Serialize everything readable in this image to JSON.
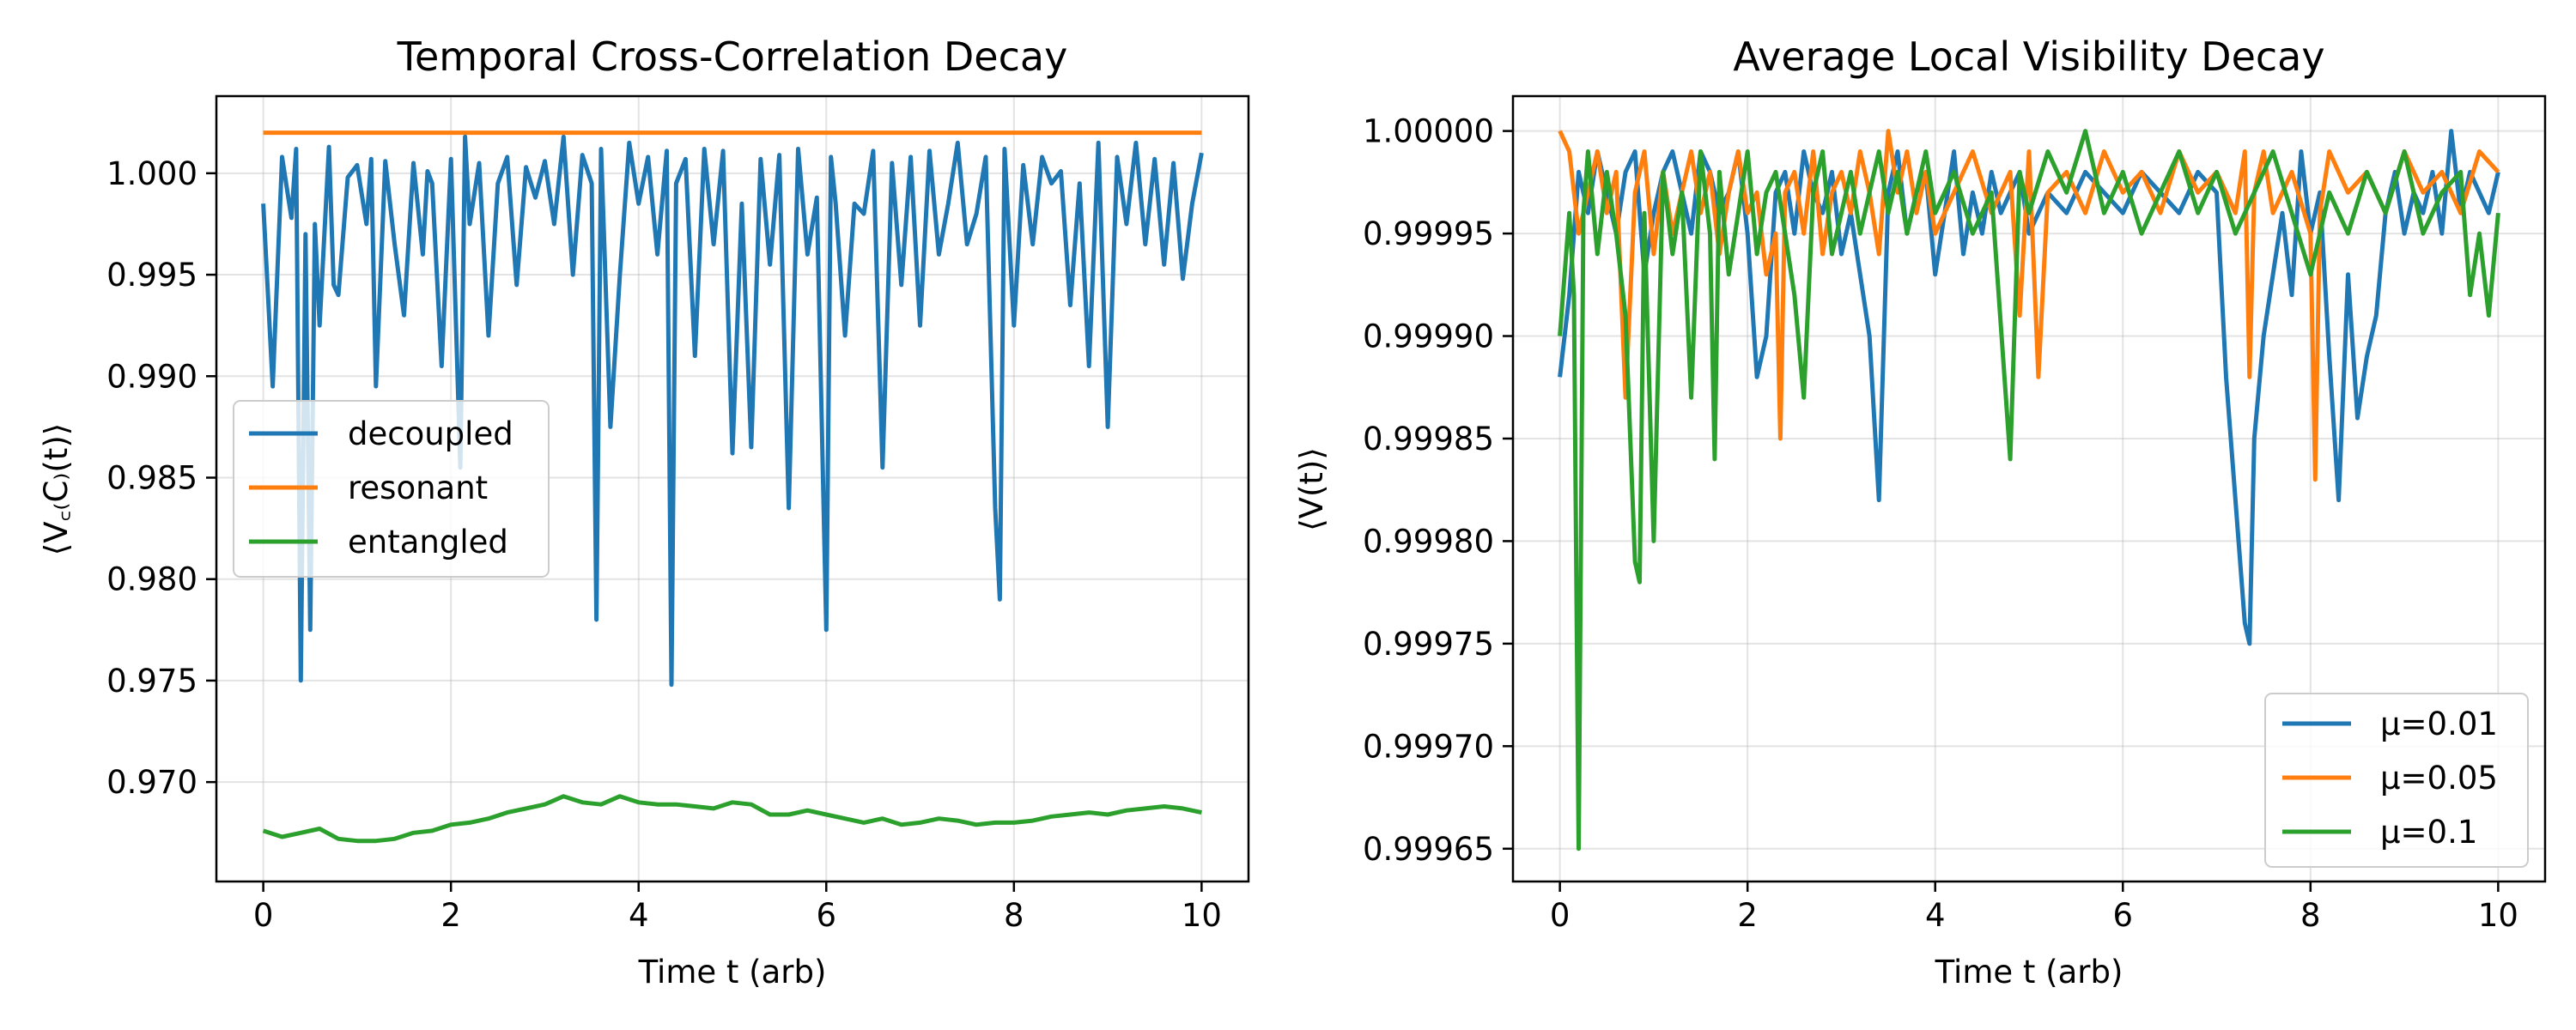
{
  "chart_data": [
    {
      "type": "line",
      "title": "Temporal Cross-Correlation Decay",
      "xlabel": "Time t (arb)",
      "ylabel": "⟨V꜀₍C₎(t)⟩",
      "xlim": [
        -0.5,
        10.5
      ],
      "ylim": [
        0.9651,
        1.0038
      ],
      "xticks": [
        0,
        2,
        4,
        6,
        8,
        10
      ],
      "xtick_labels": [
        "0",
        "2",
        "4",
        "6",
        "8",
        "10"
      ],
      "yticks": [
        0.97,
        0.975,
        0.98,
        0.985,
        0.99,
        0.995,
        1.0
      ],
      "ytick_labels": [
        "0.970",
        "0.975",
        "0.980",
        "0.985",
        "0.990",
        "0.995",
        "1.000"
      ],
      "grid": true,
      "legend": "center-left",
      "series": [
        {
          "name": "decoupled",
          "color": "#1f77b4",
          "x": [
            0.0,
            0.1,
            0.2,
            0.3,
            0.35,
            0.4,
            0.45,
            0.5,
            0.55,
            0.6,
            0.7,
            0.75,
            0.8,
            0.9,
            1.0,
            1.1,
            1.15,
            1.2,
            1.3,
            1.4,
            1.5,
            1.6,
            1.7,
            1.75,
            1.8,
            1.9,
            2.0,
            2.1,
            2.15,
            2.2,
            2.3,
            2.4,
            2.5,
            2.6,
            2.7,
            2.8,
            2.9,
            3.0,
            3.1,
            3.2,
            3.3,
            3.4,
            3.5,
            3.55,
            3.6,
            3.7,
            3.8,
            3.9,
            4.0,
            4.1,
            4.2,
            4.3,
            4.35,
            4.4,
            4.5,
            4.6,
            4.7,
            4.8,
            4.9,
            5.0,
            5.1,
            5.2,
            5.3,
            5.4,
            5.5,
            5.6,
            5.7,
            5.8,
            5.9,
            6.0,
            6.05,
            6.1,
            6.2,
            6.3,
            6.4,
            6.5,
            6.6,
            6.7,
            6.8,
            6.9,
            7.0,
            7.1,
            7.2,
            7.3,
            7.4,
            7.5,
            7.6,
            7.7,
            7.8,
            7.85,
            7.9,
            8.0,
            8.1,
            8.2,
            8.3,
            8.4,
            8.5,
            8.6,
            8.7,
            8.8,
            8.9,
            9.0,
            9.1,
            9.2,
            9.3,
            9.4,
            9.5,
            9.6,
            9.7,
            9.8,
            9.9,
            10.0
          ],
          "y": [
            0.9985,
            0.9895,
            1.0008,
            0.9978,
            1.0012,
            0.975,
            0.997,
            0.9775,
            0.9975,
            0.9925,
            1.0013,
            0.9945,
            0.994,
            0.9998,
            1.0004,
            0.9975,
            1.0007,
            0.9895,
            1.0006,
            0.9965,
            0.993,
            1.0005,
            0.996,
            1.0001,
            0.9995,
            0.9905,
            1.0007,
            0.9855,
            1.0018,
            0.9975,
            1.0005,
            0.992,
            0.9995,
            1.0008,
            0.9945,
            1.0003,
            0.9988,
            1.0006,
            0.9975,
            1.0018,
            0.995,
            1.0009,
            0.9995,
            0.978,
            1.0012,
            0.9875,
            0.995,
            1.0015,
            0.9985,
            1.0008,
            0.996,
            1.0011,
            0.9748,
            0.9995,
            1.0007,
            0.991,
            1.0012,
            0.9965,
            1.0011,
            0.9862,
            0.9985,
            0.9865,
            1.0007,
            0.9955,
            1.0009,
            0.9835,
            1.0012,
            0.996,
            0.9988,
            0.9775,
            1.0008,
            0.9985,
            0.992,
            0.9985,
            0.998,
            1.0011,
            0.9855,
            1.0005,
            0.9945,
            1.0008,
            0.9925,
            1.0011,
            0.996,
            0.9985,
            1.0015,
            0.9965,
            0.998,
            1.0008,
            0.9835,
            0.979,
            1.0012,
            0.9925,
            1.0004,
            0.9965,
            1.0008,
            0.9995,
            1.0001,
            0.9935,
            0.9995,
            0.9905,
            1.0015,
            0.9875,
            1.0008,
            0.9975,
            1.0015,
            0.9965,
            1.0007,
            0.9955,
            1.0005,
            0.9948,
            0.9985,
            1.001
          ]
        },
        {
          "name": "resonant",
          "color": "#ff7f0e",
          "x": [
            0,
            10
          ],
          "y": [
            1.002,
            1.002
          ]
        },
        {
          "name": "entangled",
          "color": "#2ca02c",
          "x": [
            0.0,
            0.2,
            0.4,
            0.6,
            0.8,
            1.0,
            1.2,
            1.4,
            1.6,
            1.8,
            2.0,
            2.2,
            2.4,
            2.6,
            2.8,
            3.0,
            3.2,
            3.4,
            3.6,
            3.8,
            4.0,
            4.2,
            4.4,
            4.6,
            4.8,
            5.0,
            5.2,
            5.4,
            5.6,
            5.8,
            6.0,
            6.2,
            6.4,
            6.6,
            6.8,
            7.0,
            7.2,
            7.4,
            7.6,
            7.8,
            8.0,
            8.2,
            8.4,
            8.6,
            8.8,
            9.0,
            9.2,
            9.4,
            9.6,
            9.8,
            10.0
          ],
          "y": [
            0.9676,
            0.9673,
            0.9675,
            0.9677,
            0.9672,
            0.9671,
            0.9671,
            0.9672,
            0.9675,
            0.9676,
            0.9679,
            0.968,
            0.9682,
            0.9685,
            0.9687,
            0.9689,
            0.9693,
            0.969,
            0.9689,
            0.9693,
            0.969,
            0.9689,
            0.9689,
            0.9688,
            0.9687,
            0.969,
            0.9689,
            0.9684,
            0.9684,
            0.9686,
            0.9684,
            0.9682,
            0.968,
            0.9682,
            0.9679,
            0.968,
            0.9682,
            0.9681,
            0.9679,
            0.968,
            0.968,
            0.9681,
            0.9683,
            0.9684,
            0.9685,
            0.9684,
            0.9686,
            0.9687,
            0.9688,
            0.9687,
            0.9685
          ]
        }
      ]
    },
    {
      "type": "line",
      "title": "Average Local Visibility Decay",
      "xlabel": "Time t (arb)",
      "ylabel": "⟨V(t)⟩",
      "xlim": [
        -0.5,
        10.5
      ],
      "ylim": [
        0.999634,
        1.000017
      ],
      "xticks": [
        0,
        2,
        4,
        6,
        8,
        10
      ],
      "xtick_labels": [
        "0",
        "2",
        "4",
        "6",
        "8",
        "10"
      ],
      "yticks": [
        0.99965,
        0.9997,
        0.99975,
        0.9998,
        0.99985,
        0.9999,
        0.99995,
        1.0
      ],
      "ytick_labels": [
        "0.99965",
        "0.99970",
        "0.99975",
        "0.99980",
        "0.99985",
        "0.99990",
        "0.99995",
        "1.00000"
      ],
      "grid": true,
      "legend": "lower-right",
      "series": [
        {
          "name": "μ=0.01",
          "color": "#1f77b4",
          "x": [
            0.0,
            0.1,
            0.2,
            0.3,
            0.4,
            0.5,
            0.6,
            0.7,
            0.8,
            0.9,
            1.0,
            1.1,
            1.2,
            1.3,
            1.4,
            1.5,
            1.6,
            1.7,
            1.8,
            1.9,
            2.0,
            2.1,
            2.2,
            2.3,
            2.4,
            2.5,
            2.6,
            2.7,
            2.8,
            2.9,
            3.0,
            3.1,
            3.2,
            3.3,
            3.4,
            3.5,
            3.6,
            3.7,
            3.8,
            3.9,
            4.0,
            4.1,
            4.2,
            4.3,
            4.4,
            4.5,
            4.6,
            4.7,
            4.8,
            4.9,
            5.0,
            5.2,
            5.4,
            5.6,
            5.8,
            6.0,
            6.2,
            6.4,
            6.6,
            6.8,
            7.0,
            7.1,
            7.2,
            7.3,
            7.35,
            7.4,
            7.5,
            7.6,
            7.7,
            7.8,
            7.9,
            8.0,
            8.1,
            8.2,
            8.3,
            8.4,
            8.5,
            8.6,
            8.7,
            8.8,
            8.9,
            9.0,
            9.1,
            9.2,
            9.3,
            9.4,
            9.5,
            9.6,
            9.7,
            9.8,
            9.9,
            10.0
          ],
          "y": [
            0.99988,
            0.99992,
            0.99998,
            0.99996,
            0.99999,
            0.99997,
            0.99995,
            0.99998,
            0.99999,
            0.99993,
            0.99996,
            0.99998,
            0.99999,
            0.99997,
            0.99995,
            0.99999,
            0.99998,
            0.99996,
            0.99997,
            0.99999,
            0.99995,
            0.99988,
            0.9999,
            0.99997,
            0.99998,
            0.99995,
            0.99999,
            0.99997,
            0.99996,
            0.99998,
            0.99994,
            0.99996,
            0.99993,
            0.9999,
            0.99982,
            0.99997,
            0.99999,
            0.99995,
            0.99997,
            0.99998,
            0.99993,
            0.99996,
            0.99999,
            0.99994,
            0.99997,
            0.99995,
            0.99998,
            0.99996,
            0.99997,
            0.99998,
            0.99995,
            0.99997,
            0.99996,
            0.99998,
            0.99997,
            0.99996,
            0.99998,
            0.99997,
            0.99996,
            0.99998,
            0.99997,
            0.99988,
            0.99982,
            0.99976,
            0.99975,
            0.99985,
            0.9999,
            0.99993,
            0.99996,
            0.99992,
            0.99999,
            0.99995,
            0.99997,
            0.99989,
            0.99982,
            0.99993,
            0.99986,
            0.99989,
            0.99991,
            0.99996,
            0.99998,
            0.99995,
            0.99997,
            0.99996,
            0.99998,
            0.99995,
            1.0,
            0.99996,
            0.99998,
            0.99997,
            0.99996,
            0.99998
          ]
        },
        {
          "name": "μ=0.05",
          "color": "#ff7f0e",
          "x": [
            0.0,
            0.1,
            0.2,
            0.3,
            0.4,
            0.5,
            0.6,
            0.7,
            0.8,
            0.9,
            1.0,
            1.1,
            1.2,
            1.3,
            1.4,
            1.5,
            1.6,
            1.7,
            1.8,
            1.9,
            2.0,
            2.1,
            2.2,
            2.3,
            2.35,
            2.4,
            2.5,
            2.6,
            2.7,
            2.8,
            2.9,
            3.0,
            3.1,
            3.2,
            3.3,
            3.4,
            3.5,
            3.6,
            3.7,
            3.8,
            3.9,
            4.0,
            4.2,
            4.4,
            4.6,
            4.8,
            4.9,
            5.0,
            5.1,
            5.2,
            5.4,
            5.6,
            5.8,
            6.0,
            6.2,
            6.4,
            6.6,
            6.8,
            7.0,
            7.2,
            7.3,
            7.35,
            7.4,
            7.5,
            7.6,
            7.8,
            8.0,
            8.05,
            8.1,
            8.2,
            8.4,
            8.6,
            8.8,
            9.0,
            9.2,
            9.4,
            9.6,
            9.8,
            10.0
          ],
          "y": [
            1.0,
            0.99999,
            0.99995,
            0.99997,
            0.99999,
            0.99996,
            0.99998,
            0.99987,
            0.99997,
            0.99999,
            0.99994,
            0.99998,
            0.99995,
            0.99997,
            0.99999,
            0.99996,
            0.99998,
            0.99994,
            0.99997,
            0.99999,
            0.99996,
            0.99997,
            0.99993,
            0.99995,
            0.99985,
            0.99997,
            0.99998,
            0.99995,
            0.99999,
            0.99994,
            0.99997,
            0.99998,
            0.99996,
            0.99999,
            0.99997,
            0.99994,
            1.0,
            0.99997,
            0.99999,
            0.99996,
            0.99998,
            0.99995,
            0.99997,
            0.99999,
            0.99996,
            0.99998,
            0.99991,
            0.99999,
            0.99988,
            0.99997,
            0.99998,
            0.99996,
            0.99999,
            0.99997,
            0.99998,
            0.99996,
            0.99999,
            0.99997,
            0.99998,
            0.99996,
            0.99999,
            0.99988,
            0.99997,
            0.99999,
            0.99996,
            0.99998,
            0.99995,
            0.99983,
            0.99996,
            0.99999,
            0.99997,
            0.99998,
            0.99996,
            0.99999,
            0.99997,
            0.99998,
            0.99996,
            0.99999,
            0.99998
          ]
        },
        {
          "name": "μ=0.1",
          "color": "#2ca02c",
          "x": [
            0.0,
            0.1,
            0.15,
            0.2,
            0.25,
            0.3,
            0.4,
            0.5,
            0.6,
            0.7,
            0.8,
            0.85,
            0.9,
            1.0,
            1.1,
            1.2,
            1.3,
            1.4,
            1.5,
            1.6,
            1.65,
            1.7,
            1.8,
            1.9,
            2.0,
            2.1,
            2.2,
            2.3,
            2.4,
            2.5,
            2.6,
            2.7,
            2.8,
            2.9,
            3.0,
            3.1,
            3.2,
            3.3,
            3.4,
            3.5,
            3.6,
            3.7,
            3.8,
            3.9,
            4.0,
            4.2,
            4.4,
            4.6,
            4.8,
            4.9,
            5.0,
            5.2,
            5.4,
            5.6,
            5.8,
            6.0,
            6.2,
            6.4,
            6.6,
            6.8,
            7.0,
            7.2,
            7.4,
            7.6,
            7.8,
            8.0,
            8.2,
            8.4,
            8.6,
            8.8,
            9.0,
            9.2,
            9.4,
            9.6,
            9.7,
            9.8,
            9.9,
            10.0
          ],
          "y": [
            0.9999,
            0.99996,
            0.99992,
            0.99965,
            0.99996,
            0.99999,
            0.99994,
            0.99998,
            0.99995,
            0.99991,
            0.99979,
            0.99978,
            0.99996,
            0.9998,
            0.99998,
            0.99994,
            0.99997,
            0.99987,
            0.99999,
            0.99995,
            0.99984,
            0.99998,
            0.99993,
            0.99996,
            0.99999,
            0.99994,
            0.99997,
            0.99998,
            0.99995,
            0.99992,
            0.99987,
            0.99997,
            0.99999,
            0.99994,
            0.99996,
            0.99998,
            0.99995,
            0.99997,
            0.99999,
            0.99996,
            0.99998,
            0.99995,
            0.99997,
            0.99999,
            0.99996,
            0.99998,
            0.99995,
            0.99997,
            0.99984,
            0.99998,
            0.99996,
            0.99999,
            0.99997,
            1.0,
            0.99996,
            0.99998,
            0.99995,
            0.99997,
            0.99999,
            0.99996,
            0.99998,
            0.99995,
            0.99997,
            0.99999,
            0.99996,
            0.99993,
            0.99997,
            0.99995,
            0.99998,
            0.99996,
            0.99999,
            0.99995,
            0.99997,
            0.99998,
            0.99992,
            0.99995,
            0.99991,
            0.99996
          ]
        }
      ]
    }
  ]
}
